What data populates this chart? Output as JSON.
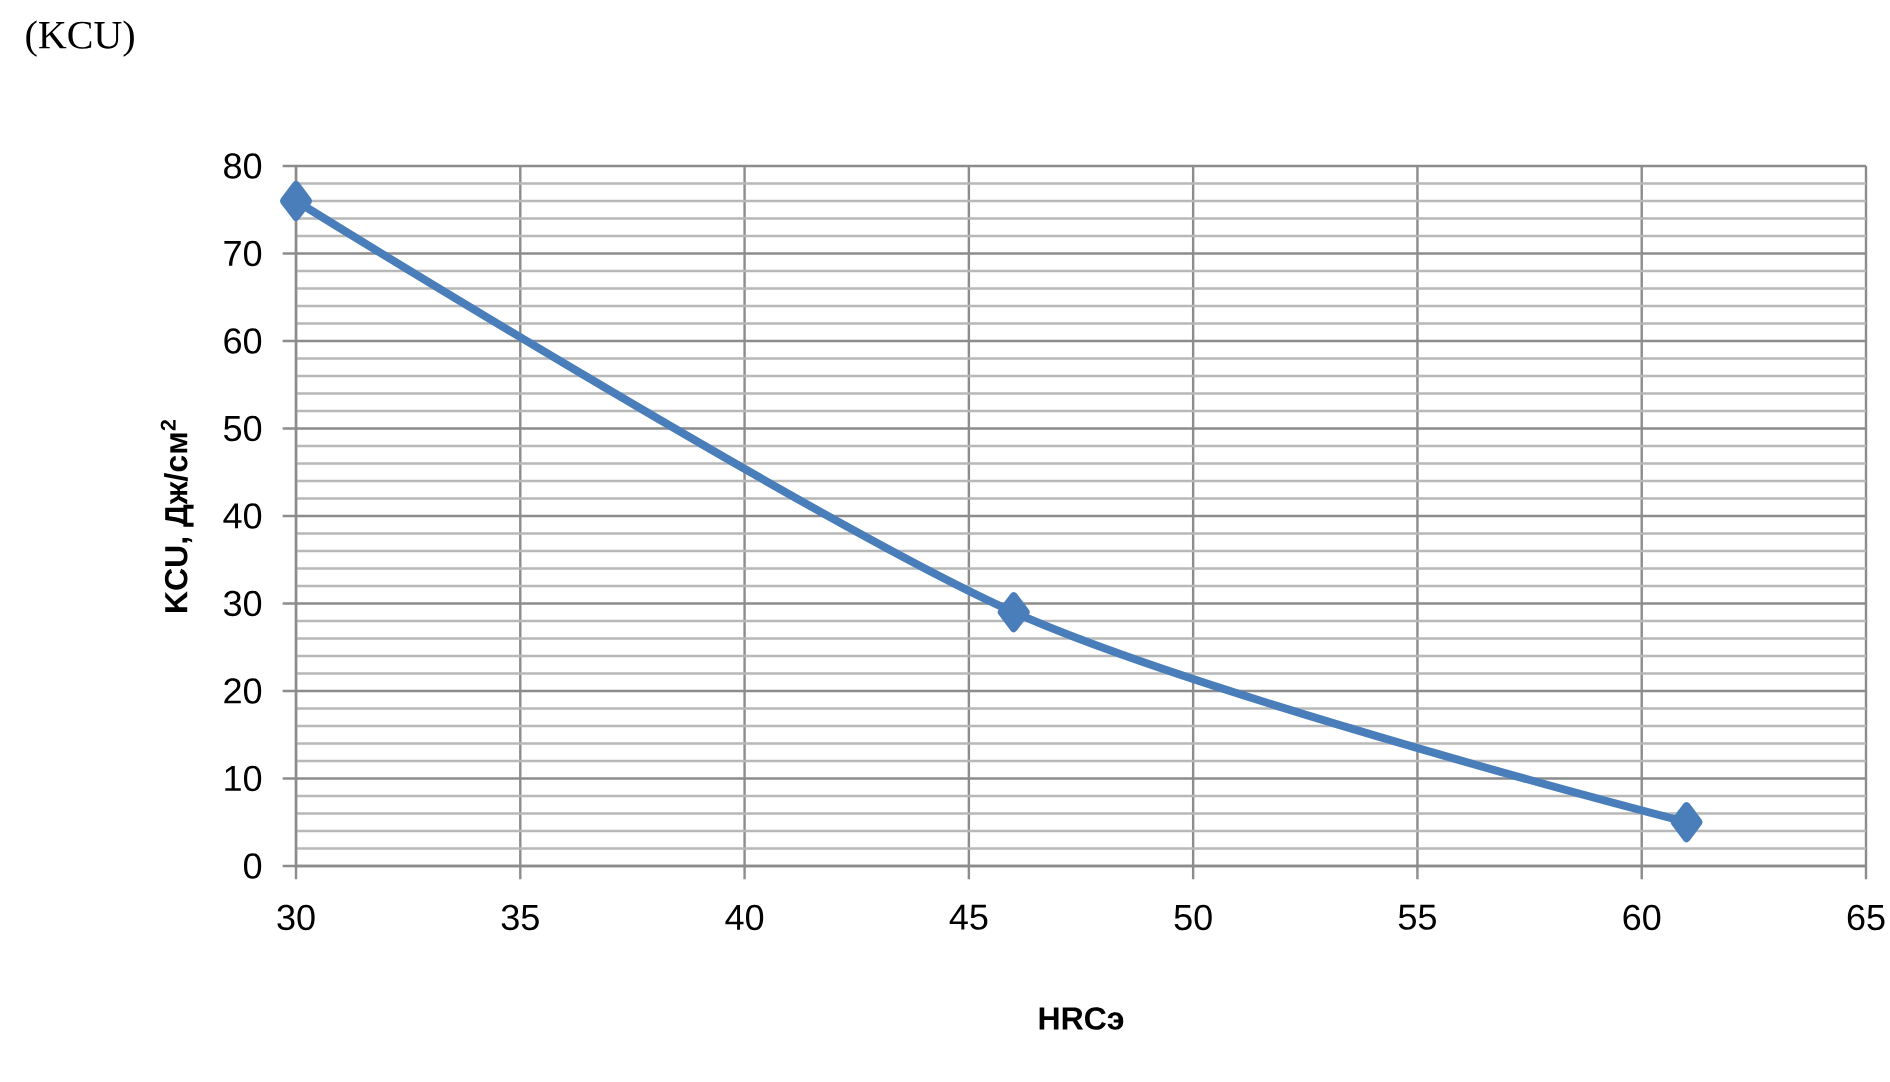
{
  "chart_data": {
    "type": "line",
    "xlabel": "HRCэ",
    "ylabel": "KCU,  Дж/см$^{2}$",
    "annotations": [
      "(KCU)"
    ],
    "x": [
      30,
      46,
      61
    ],
    "series": [
      {
        "color": "#4a7ebb",
        "values": [
          76,
          29,
          5
        ]
      }
    ],
    "xlim": [
      30,
      65
    ],
    "xticks": [
      30,
      35,
      40,
      45,
      50,
      55,
      60,
      65
    ],
    "ylim": [
      0,
      80
    ],
    "yticks": [
      0,
      {
        "value": 2,
        "label": null
      },
      {
        "value": 4,
        "label": null
      },
      {
        "value": 6,
        "label": null
      },
      {
        "value": 8,
        "label": null
      },
      10,
      {
        "value": 12,
        "label": null
      },
      {
        "value": 14,
        "label": null
      },
      {
        "value": 16,
        "label": null
      },
      {
        "value": 18,
        "label": null
      },
      20,
      {
        "value": 22,
        "label": null
      },
      {
        "value": 24,
        "label": null
      },
      {
        "value": 26,
        "label": null
      },
      {
        "value": 28,
        "label": null
      },
      30,
      {
        "value": 32,
        "label": null
      },
      {
        "value": 34,
        "label": null
      },
      {
        "value": 36,
        "label": null
      },
      {
        "value": 38,
        "label": null
      },
      40,
      {
        "value": 42,
        "label": null
      },
      {
        "value": 44,
        "label": null
      },
      {
        "value": 46,
        "label": null
      },
      {
        "value": 48,
        "label": null
      },
      50,
      {
        "value": 52,
        "label": null
      },
      {
        "value": 54,
        "label": null
      },
      {
        "value": 56,
        "label": null
      },
      {
        "value": 58,
        "label": null
      },
      60,
      {
        "value": 62,
        "label": null
      },
      {
        "value": 64,
        "label": null
      },
      {
        "value": 66,
        "label": null
      },
      {
        "value": 68,
        "label": null
      },
      70,
      {
        "value": 72,
        "label": null
      },
      {
        "value": 74,
        "label": null
      },
      {
        "value": 76,
        "label": null
      },
      {
        "value": 78,
        "label": null
      },
      80
    ],
    "grid": true,
    "marker": "diamond",
    "line_style": "solid"
  }
}
